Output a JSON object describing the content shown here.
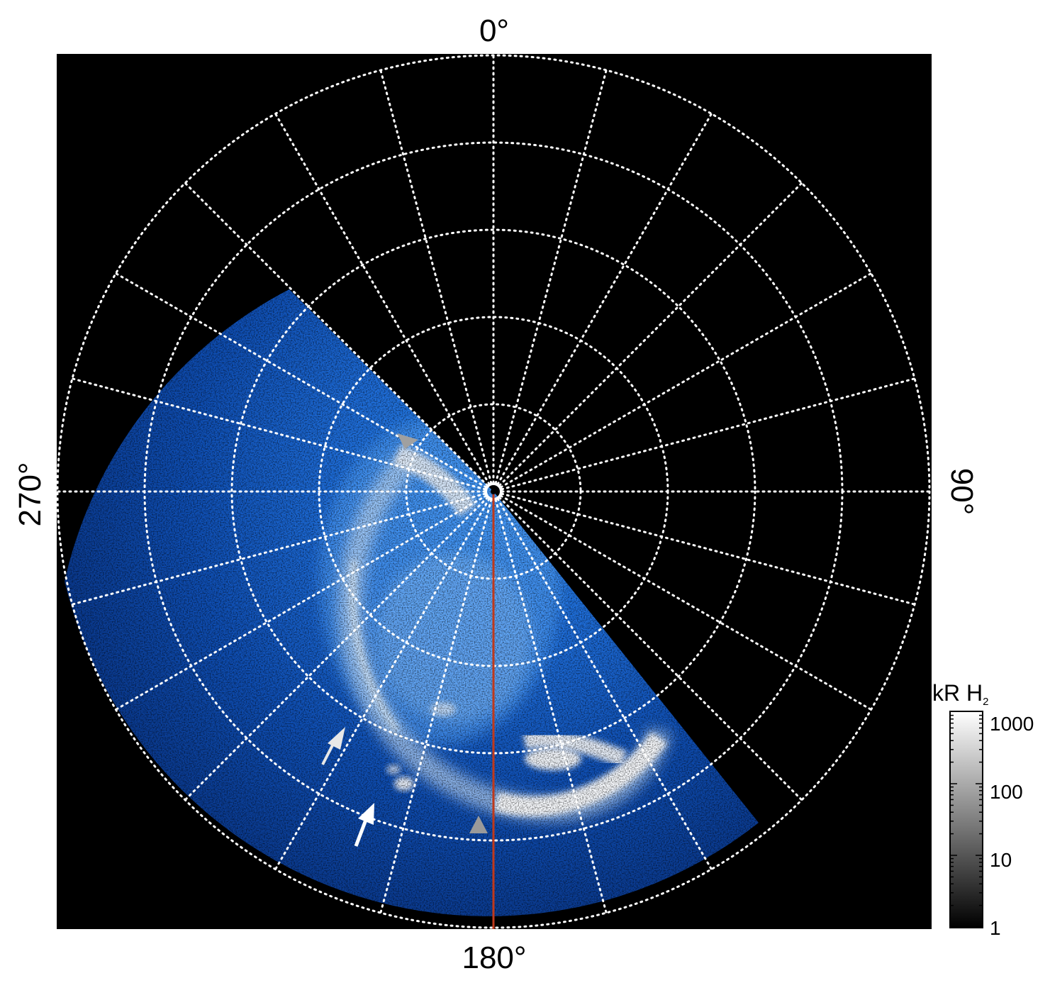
{
  "figure": {
    "angle_labels": {
      "top": "0°",
      "right": "90°",
      "bottom": "180°",
      "left": "270°"
    },
    "colorbar": {
      "title": "kR H",
      "title_subscript": "2",
      "tick_labels": [
        "1000",
        "100",
        "10",
        "1"
      ],
      "tick_values": [
        1000,
        100,
        10,
        1
      ],
      "scale": "log"
    },
    "grid": {
      "meridian_count": 24,
      "ring_count": 5,
      "style": "dotted",
      "color": "#ffffff"
    },
    "colors": {
      "background": "#000000",
      "emission_dim": "#0a3f9c",
      "emission_mid": "#2f8bf0",
      "emission_bright": "#ffffff",
      "meridian_line": "#c0391b",
      "arrow_white": "#ffffff",
      "arrow_grey": "#9a9a9a"
    },
    "markers": {
      "white_arrows": 2,
      "grey_triangles": 2
    }
  }
}
